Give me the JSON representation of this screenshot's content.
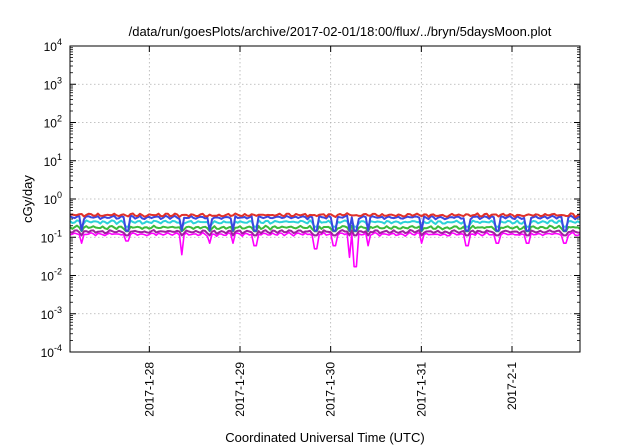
{
  "chart_data": {
    "type": "line",
    "title": "/data/run/goesPlots/archive/2017-02-01/18:00/flux/../bryn/5daysMoon.plot",
    "xlabel": "Coordinated Universal Time (UTC)",
    "ylabel": "cGy/day",
    "yscale": "log",
    "ylim": [
      0.0001,
      10000
    ],
    "xlim": [
      "2017-01-27T03:00",
      "2017-02-01T18:00"
    ],
    "grid": true,
    "x_tick_labels": [
      "2017-1-28",
      "2017-1-29",
      "2017-1-30",
      "2017-1-31",
      "2017-2-1"
    ],
    "x_ticks": [
      "2017-01-28T00:00",
      "2017-01-29T00:00",
      "2017-01-30T00:00",
      "2017-01-31T00:00",
      "2017-02-01T00:00"
    ],
    "y_ticks": [
      {
        "base": "10",
        "exp": "-4",
        "value": 0.0001
      },
      {
        "base": "10",
        "exp": "-3",
        "value": 0.001
      },
      {
        "base": "10",
        "exp": "-2",
        "value": 0.01
      },
      {
        "base": "10",
        "exp": "-1",
        "value": 0.1
      },
      {
        "base": "10",
        "exp": "0",
        "value": 1
      },
      {
        "base": "10",
        "exp": "1",
        "value": 10
      },
      {
        "base": "10",
        "exp": "2",
        "value": 100
      },
      {
        "base": "10",
        "exp": "3",
        "value": 1000
      },
      {
        "base": "10",
        "exp": "4",
        "value": 10000
      }
    ],
    "series": [
      {
        "color": "#e0302a",
        "typical": 0.38,
        "min": 0.3,
        "max": 0.45
      },
      {
        "color": "#3a46e0",
        "typical": 0.33,
        "min": 0.12,
        "max": 0.4
      },
      {
        "color": "#2bd1d8",
        "typical": 0.25,
        "min": 0.18,
        "max": 0.3
      },
      {
        "color": "#3cba3c",
        "typical": 0.18,
        "min": 0.14,
        "max": 0.22
      },
      {
        "color": "#a020a0",
        "typical": 0.14,
        "min": 0.1,
        "max": 0.17
      },
      {
        "color": "#ff00ff",
        "typical": 0.12,
        "min": 0.017,
        "max": 0.15
      }
    ],
    "dips": [
      {
        "time": "2017-01-27T06:00",
        "magenta": 0.07
      },
      {
        "time": "2017-01-27T18:00",
        "magenta": 0.08
      },
      {
        "time": "2017-01-28T08:30",
        "magenta": 0.035
      },
      {
        "time": "2017-01-28T16:00",
        "magenta": 0.07
      },
      {
        "time": "2017-01-28T22:00",
        "magenta": 0.07
      },
      {
        "time": "2017-01-29T04:00",
        "magenta": 0.06
      },
      {
        "time": "2017-01-29T20:00",
        "magenta": 0.05
      },
      {
        "time": "2017-01-30T01:00",
        "magenta": 0.06
      },
      {
        "time": "2017-01-30T05:00",
        "magenta": 0.03
      },
      {
        "time": "2017-01-30T06:30",
        "magenta": 0.017
      },
      {
        "time": "2017-01-30T10:00",
        "magenta": 0.06
      },
      {
        "time": "2017-01-31T00:00",
        "magenta": 0.07
      },
      {
        "time": "2017-01-31T12:00",
        "magenta": 0.06
      },
      {
        "time": "2017-01-31T20:00",
        "magenta": 0.07
      },
      {
        "time": "2017-02-01T04:00",
        "magenta": 0.07
      },
      {
        "time": "2017-02-01T14:00",
        "magenta": 0.07
      }
    ]
  }
}
